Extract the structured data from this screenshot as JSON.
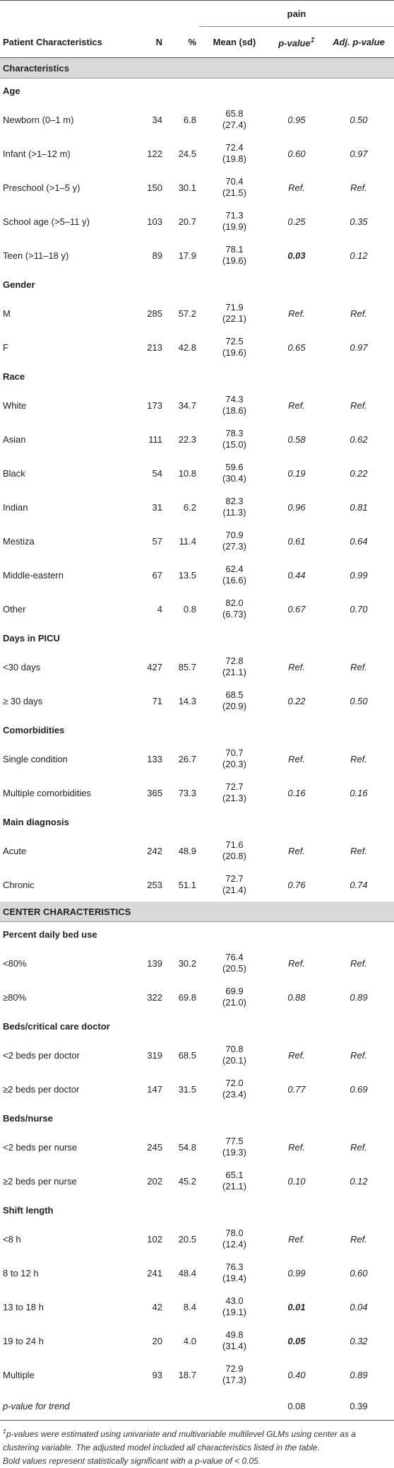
{
  "header": {
    "group_label": "pain",
    "columns": [
      "Patient Characteristics",
      "N",
      "%",
      "Mean (sd)",
      "p-value",
      "Adj. p-value"
    ],
    "pvalue_mark": "‡"
  },
  "sections": [
    {
      "title": "Characteristics",
      "groups": [
        {
          "title": "Age",
          "rows": [
            {
              "label": "Newborn (0–1 m)",
              "n": "34",
              "pct": "6.8",
              "mean": "65.8",
              "sd": "(27.4)",
              "p": "0.95",
              "adj": "0.50"
            },
            {
              "label": "Infant (>1–12 m)",
              "n": "122",
              "pct": "24.5",
              "mean": "72.4",
              "sd": "(19.8)",
              "p": "0.60",
              "adj": "0.97"
            },
            {
              "label": "Preschool (>1–5 y)",
              "n": "150",
              "pct": "30.1",
              "mean": "70.4",
              "sd": "(21.5)",
              "p": "Ref.",
              "adj": "Ref."
            },
            {
              "label": "School age (>5–11 y)",
              "n": "103",
              "pct": "20.7",
              "mean": "71.3",
              "sd": "(19.9)",
              "p": "0.25",
              "adj": "0.35"
            },
            {
              "label": "Teen (>11–18 y)",
              "n": "89",
              "pct": "17.9",
              "mean": "78.1",
              "sd": "(19.6)",
              "p": "0.03",
              "adj": "0.12",
              "p_bold": true
            }
          ]
        },
        {
          "title": "Gender",
          "rows": [
            {
              "label": "M",
              "n": "285",
              "pct": "57.2",
              "mean": "71.9",
              "sd": "(22.1)",
              "p": "Ref.",
              "adj": "Ref."
            },
            {
              "label": "F",
              "n": "213",
              "pct": "42.8",
              "mean": "72.5",
              "sd": "(19.6)",
              "p": "0.65",
              "adj": "0.97"
            }
          ]
        },
        {
          "title": "Race",
          "rows": [
            {
              "label": "White",
              "n": "173",
              "pct": "34.7",
              "mean": "74.3",
              "sd": "(18.6)",
              "p": "Ref.",
              "adj": "Ref."
            },
            {
              "label": "Asian",
              "n": "111",
              "pct": "22.3",
              "mean": "78.3",
              "sd": "(15.0)",
              "p": "0.58",
              "adj": "0.62"
            },
            {
              "label": "Black",
              "n": "54",
              "pct": "10.8",
              "mean": "59.6",
              "sd": "(30.4)",
              "p": "0.19",
              "adj": "0.22"
            },
            {
              "label": "Indian",
              "n": "31",
              "pct": "6.2",
              "mean": "82.3",
              "sd": "(11.3)",
              "p": "0.96",
              "adj": "0.81"
            },
            {
              "label": "Mestiza",
              "n": "57",
              "pct": "11.4",
              "mean": "70.9",
              "sd": "(27.3)",
              "p": "0.61",
              "adj": "0.64"
            },
            {
              "label": "Middle-eastern",
              "n": "67",
              "pct": "13.5",
              "mean": "62.4",
              "sd": "(16.6)",
              "p": "0.44",
              "adj": "0.99"
            },
            {
              "label": "Other",
              "n": "4",
              "pct": "0.8",
              "mean": "82.0",
              "sd": "(6.73)",
              "p": "0.67",
              "adj": "0.70"
            }
          ]
        },
        {
          "title": "Days in PICU",
          "rows": [
            {
              "label": "<30 days",
              "n": "427",
              "pct": "85.7",
              "mean": "72.8",
              "sd": "(21.1)",
              "p": "Ref.",
              "adj": "Ref."
            },
            {
              "label": "≥ 30 days",
              "n": "71",
              "pct": "14.3",
              "mean": "68.5",
              "sd": "(20.9)",
              "p": "0.22",
              "adj": "0.50"
            }
          ]
        },
        {
          "title": "Comorbidities",
          "rows": [
            {
              "label": "Single condition",
              "n": "133",
              "pct": "26.7",
              "mean": "70.7",
              "sd": "(20.3)",
              "p": "Ref.",
              "adj": "Ref."
            },
            {
              "label": "Multiple comorbidities",
              "n": "365",
              "pct": "73.3",
              "mean": "72.7",
              "sd": "(21.3)",
              "p": "0.16",
              "adj": "0.16"
            }
          ]
        },
        {
          "title": "Main diagnosis",
          "rows": [
            {
              "label": "Acute",
              "n": "242",
              "pct": "48.9",
              "mean": "71.6",
              "sd": "(20.8)",
              "p": "Ref.",
              "adj": "Ref."
            },
            {
              "label": "Chronic",
              "n": "253",
              "pct": "51.1",
              "mean": "72.7",
              "sd": "(21.4)",
              "p": "0.76",
              "adj": "0.74"
            }
          ]
        }
      ]
    },
    {
      "title": "CENTER CHARACTERISTICS",
      "groups": [
        {
          "title": "Percent daily bed use",
          "rows": [
            {
              "label": "<80%",
              "n": "139",
              "pct": "30.2",
              "mean": "76.4",
              "sd": "(20.5)",
              "p": "Ref.",
              "adj": "Ref."
            },
            {
              "label": "≥80%",
              "n": "322",
              "pct": "69.8",
              "mean": "69.9",
              "sd": "(21.0)",
              "p": "0.88",
              "adj": "0.89"
            }
          ]
        },
        {
          "title": "Beds/critical care doctor",
          "rows": [
            {
              "label": "<2 beds per doctor",
              "n": "319",
              "pct": "68.5",
              "mean": "70.8",
              "sd": "(20.1)",
              "p": "Ref.",
              "adj": "Ref."
            },
            {
              "label": "≥2 beds per doctor",
              "n": "147",
              "pct": "31.5",
              "mean": "72.0",
              "sd": "(23.4)",
              "p": "0.77",
              "adj": "0.69"
            }
          ]
        },
        {
          "title": "Beds/nurse",
          "rows": [
            {
              "label": "<2 beds per nurse",
              "n": "245",
              "pct": "54.8",
              "mean": "77.5",
              "sd": "(19.3)",
              "p": "Ref.",
              "adj": "Ref."
            },
            {
              "label": "≥2 beds per nurse",
              "n": "202",
              "pct": "45.2",
              "mean": "65.1",
              "sd": "(21.1)",
              "p": "0.10",
              "adj": "0.12"
            }
          ]
        },
        {
          "title": "Shift length",
          "rows": [
            {
              "label": "<8 h",
              "n": "102",
              "pct": "20.5",
              "mean": "78.0",
              "sd": "(12.4)",
              "p": "Ref.",
              "adj": "Ref."
            },
            {
              "label": "8 to 12 h",
              "n": "241",
              "pct": "48.4",
              "mean": "76.3",
              "sd": "(19.4)",
              "p": "0.99",
              "adj": "0.60"
            },
            {
              "label": "13 to 18 h",
              "n": "42",
              "pct": "8.4",
              "mean": "43.0",
              "sd": "(19.1)",
              "p": "0.01",
              "adj": "0.04",
              "p_bold": true
            },
            {
              "label": "19 to 24 h",
              "n": "20",
              "pct": "4.0",
              "mean": "49.8",
              "sd": "(31.4)",
              "p": "0.05",
              "adj": "0.32",
              "p_bold": true
            },
            {
              "label": "Multiple",
              "n": "93",
              "pct": "18.7",
              "mean": "72.9",
              "sd": "(17.3)",
              "p": "0.40",
              "adj": "0.89"
            }
          ]
        }
      ]
    }
  ],
  "trend": {
    "label": "p-value for trend",
    "p": "0.08",
    "adj": "0.39"
  },
  "footnote": {
    "mark": "‡",
    "line1": "p-values were estimated using univariate and multivariable multilevel GLMs using center as a clustering variable. The adjusted model included all characteristics listed in the table.",
    "line2": "Bold values represent statistically significant with a p-value of < 0.05."
  }
}
